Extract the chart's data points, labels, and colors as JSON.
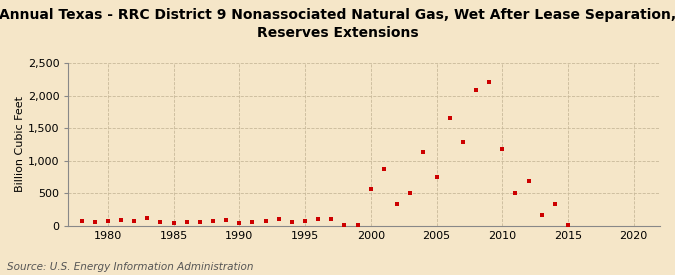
{
  "title": "Annual Texas - RRC District 9 Nonassociated Natural Gas, Wet After Lease Separation,\nReserves Extensions",
  "ylabel": "Billion Cubic Feet",
  "source": "Source: U.S. Energy Information Administration",
  "background_color": "#f5e6c8",
  "marker_color": "#cc0000",
  "xlim": [
    1977,
    2022
  ],
  "ylim": [
    0,
    2500
  ],
  "yticks": [
    0,
    500,
    1000,
    1500,
    2000,
    2500
  ],
  "ytick_labels": [
    "0",
    "500",
    "1,000",
    "1,500",
    "2,000",
    "2,500"
  ],
  "xticks": [
    1980,
    1985,
    1990,
    1995,
    2000,
    2005,
    2010,
    2015,
    2020
  ],
  "years": [
    1978,
    1979,
    1980,
    1981,
    1982,
    1983,
    1984,
    1985,
    1986,
    1987,
    1988,
    1989,
    1990,
    1991,
    1992,
    1993,
    1994,
    1995,
    1996,
    1997,
    1998,
    1999,
    2000,
    2001,
    2002,
    2003,
    2004,
    2005,
    2006,
    2007,
    2008,
    2009,
    2010,
    2011,
    2012,
    2013,
    2014,
    2015
  ],
  "values": [
    80,
    55,
    75,
    90,
    75,
    115,
    65,
    50,
    55,
    65,
    75,
    90,
    50,
    55,
    75,
    110,
    65,
    80,
    110,
    105,
    20,
    10,
    560,
    870,
    340,
    500,
    1130,
    750,
    1650,
    1290,
    2090,
    2210,
    1180,
    500,
    690,
    170,
    340,
    10
  ],
  "title_fontsize": 10,
  "axis_fontsize": 8,
  "source_fontsize": 7.5
}
